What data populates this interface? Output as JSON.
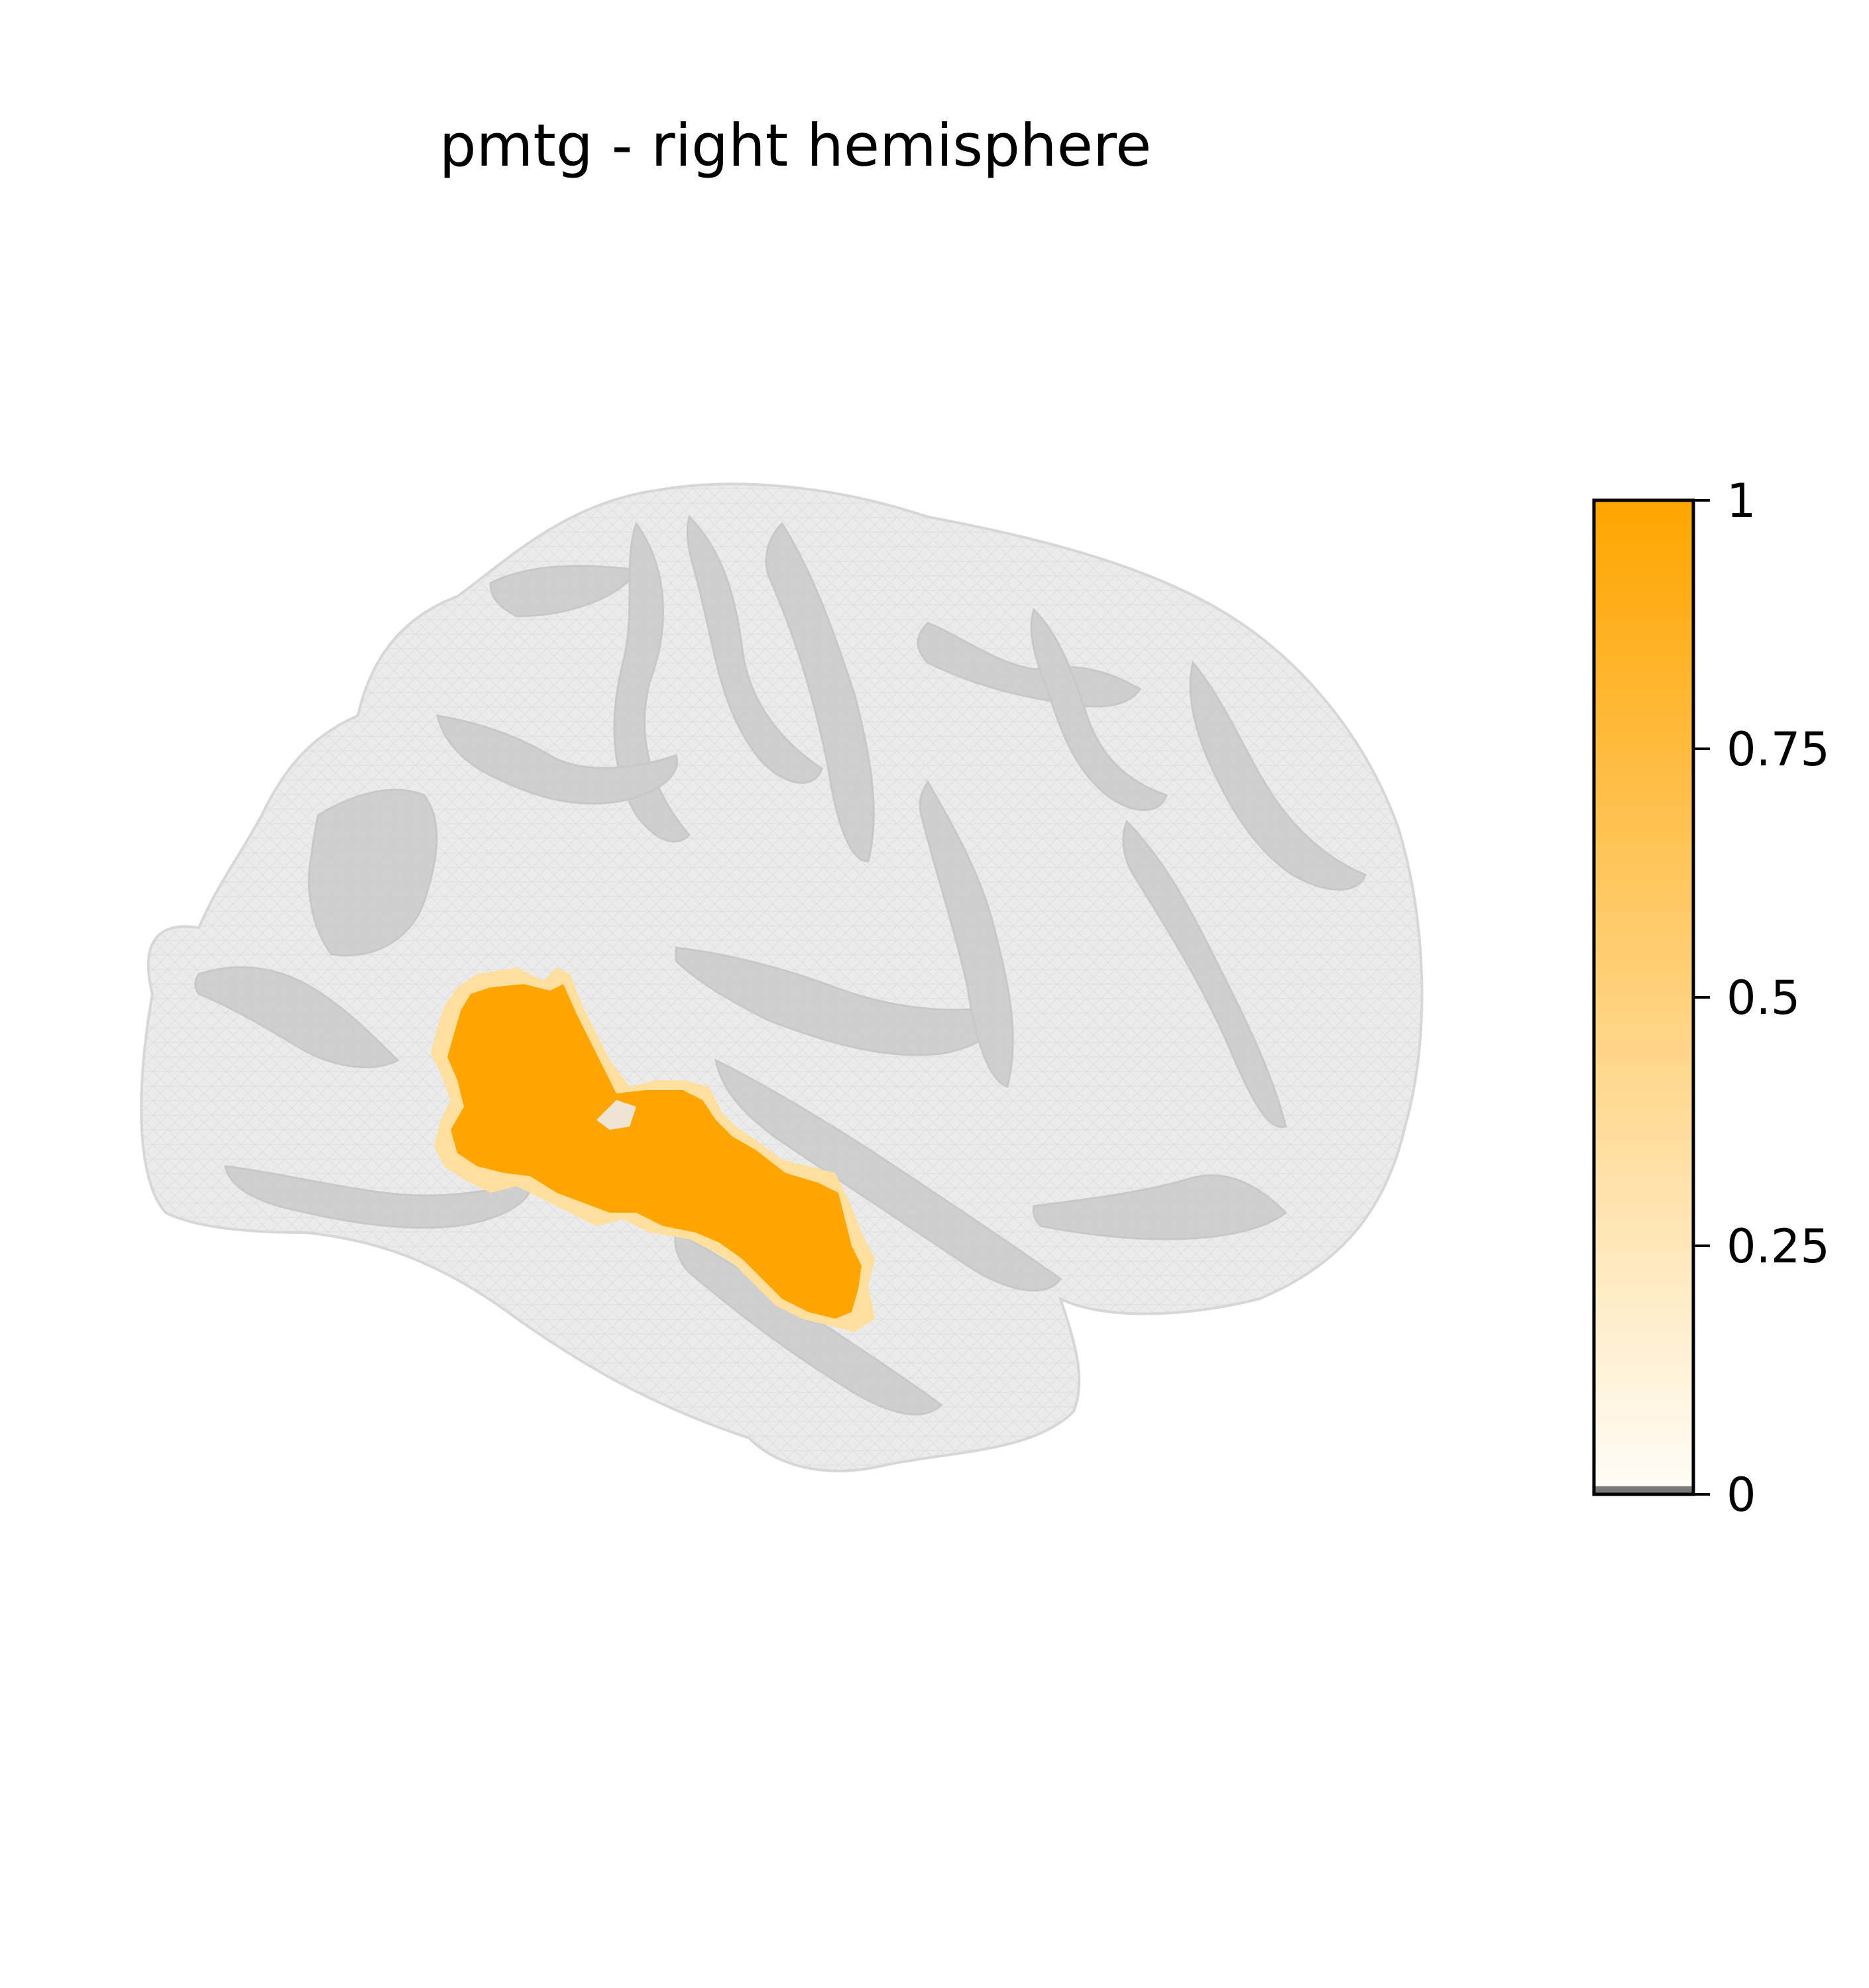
{
  "title": "pmtg - right hemisphere",
  "colorbar": {
    "ticks": [
      {
        "value": 0,
        "label": "0"
      },
      {
        "value": 0.25,
        "label": "0.25"
      },
      {
        "value": 0.5,
        "label": "0.5"
      },
      {
        "value": 0.75,
        "label": "0.75"
      },
      {
        "value": 1,
        "label": "1"
      }
    ],
    "range": [
      0,
      1
    ],
    "colors": {
      "low": "#fffdf8",
      "high": "#ffa500"
    }
  },
  "colors": {
    "brain_surface": "#ebebeb",
    "brain_edge": "#d7d7d7",
    "sulci": "#c8c8c8",
    "highlight": "#ffa500",
    "highlight_fringe": "#ffdf9e"
  }
}
